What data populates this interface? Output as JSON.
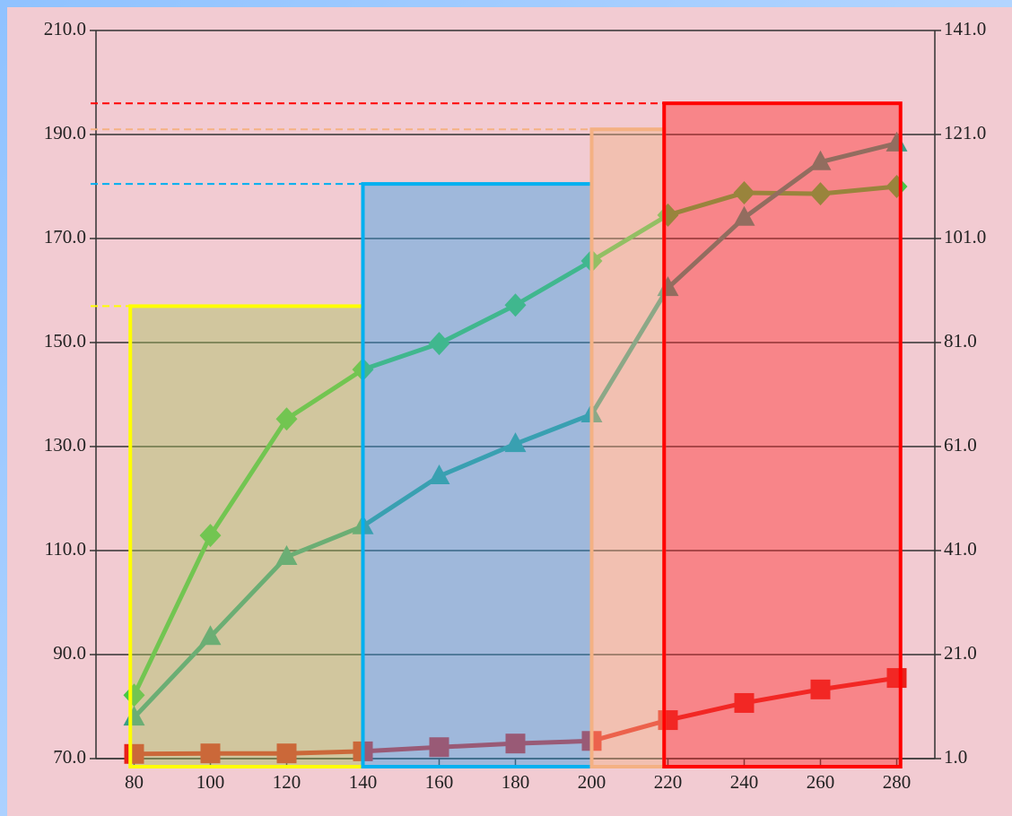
{
  "chart_data": {
    "type": "line",
    "x": [
      80,
      100,
      120,
      140,
      160,
      180,
      200,
      220,
      240,
      260,
      280
    ],
    "xlim": [
      70,
      290
    ],
    "xticks": [
      80,
      100,
      120,
      140,
      160,
      180,
      200,
      220,
      240,
      260,
      280
    ],
    "ylim": [
      70,
      210
    ],
    "yticks": [
      {
        "value": 70,
        "label": "70.0"
      },
      {
        "value": 90,
        "label": "90.0"
      },
      {
        "value": 110,
        "label": "110.0"
      },
      {
        "value": 130,
        "label": "130.0"
      },
      {
        "value": 150,
        "label": "150.0"
      },
      {
        "value": 170,
        "label": "170.0"
      },
      {
        "value": 190,
        "label": "190.0"
      },
      {
        "value": 210,
        "label": "210.0"
      }
    ],
    "y2lim": [
      1,
      141
    ],
    "y2ticks": [
      {
        "value": 1,
        "label": "1.0"
      },
      {
        "value": 21,
        "label": "21.0"
      },
      {
        "value": 41,
        "label": "41.0"
      },
      {
        "value": 61,
        "label": "61.0"
      },
      {
        "value": 81,
        "label": "81.0"
      },
      {
        "value": 101,
        "label": "101.0"
      },
      {
        "value": 121,
        "label": "121.0"
      },
      {
        "value": 141,
        "label": "141.0"
      }
    ],
    "grid": true,
    "series": [
      {
        "color": "#46c846",
        "marker": "diamond",
        "values": [
          82.2,
          112.9,
          135.3,
          144.8,
          149.8,
          157.2,
          165.7,
          174.5,
          178.8,
          178.6,
          180
        ]
      },
      {
        "color": "#3a9e86",
        "marker": "triangle",
        "values": [
          77.9,
          93.4,
          108.8,
          114.7,
          124.3,
          130.5,
          136.2,
          160.5,
          174,
          184.7,
          188.3
        ]
      },
      {
        "color": "#e8201a",
        "marker": "square",
        "axis": "y2",
        "values": [
          1.9,
          2,
          2,
          2.4,
          3.2,
          3.9,
          4.4,
          8.4,
          11.7,
          14.3,
          16.5
        ]
      }
    ],
    "regions": [
      {
        "x": [
          79,
          140
        ],
        "top": 157,
        "color": "#ffff00",
        "fill": "#a8c060"
      },
      {
        "x": [
          140,
          200
        ],
        "top": 180.5,
        "color": "#00b0f0",
        "fill": "#3aa2e6"
      },
      {
        "x": [
          200,
          219
        ],
        "top": 191,
        "color": "#f4b183",
        "fill": "#f2b48a"
      },
      {
        "x": [
          219,
          281
        ],
        "top": 196,
        "color": "#ff0000",
        "fill": "#ff3030"
      }
    ]
  }
}
